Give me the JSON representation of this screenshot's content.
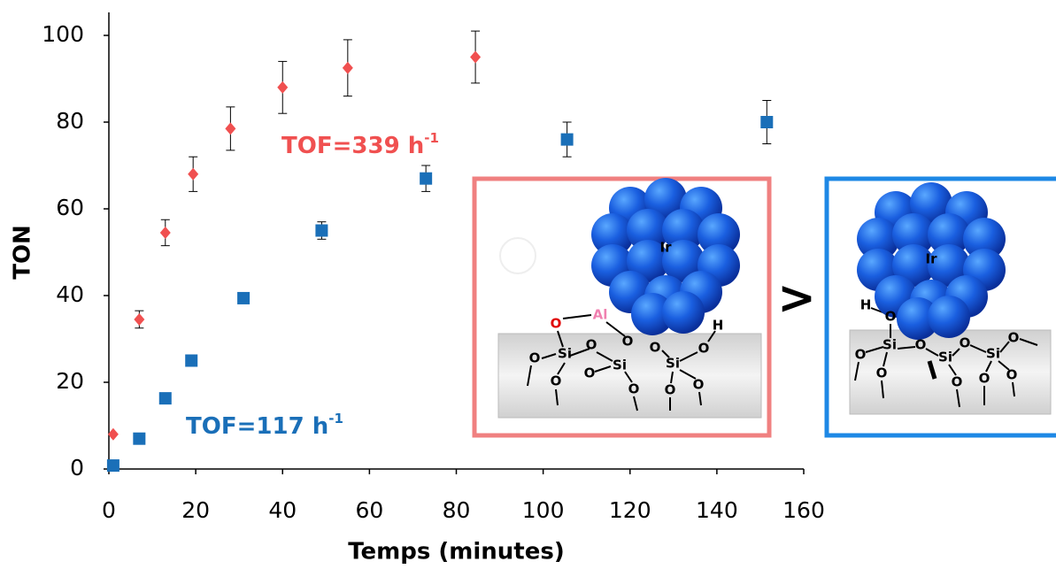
{
  "chart_data": {
    "type": "scatter",
    "xlabel": "Temps (minutes)",
    "ylabel": "TON",
    "xlim": [
      0,
      160
    ],
    "xticks": [
      0,
      20,
      40,
      60,
      80,
      100,
      120,
      140,
      160
    ],
    "ylim": [
      0,
      100
    ],
    "yticks": [
      0,
      20,
      40,
      60,
      80,
      100
    ],
    "grid": false,
    "series": [
      {
        "color": "#f05050",
        "marker": "diamond",
        "x": [
          1,
          7,
          13,
          19.4,
          28,
          40,
          55,
          84.4
        ],
        "values": [
          8,
          34.5,
          54.5,
          68,
          78.5,
          88,
          92.5,
          95
        ],
        "errors": [
          null,
          2,
          3,
          4,
          5,
          6,
          6.5,
          6
        ]
      },
      {
        "color": "#1a6fb8",
        "marker": "square",
        "x": [
          1,
          7,
          13,
          19,
          31,
          49,
          73,
          105.5,
          151.5
        ],
        "values": [
          0.8,
          7,
          16.3,
          25,
          39.4,
          55,
          67,
          76,
          80
        ],
        "errors": [
          null,
          null,
          null,
          null,
          null,
          2,
          3,
          4,
          5
        ]
      }
    ],
    "annotations": [
      {
        "text": "TOF=339 h",
        "sup": "-1",
        "color": "#f05050"
      },
      {
        "text": "TOF=117 h",
        "sup": "-1",
        "color": "#1a6fb8"
      }
    ]
  },
  "diagrams": [
    {
      "labels": [
        "Ir",
        "O",
        "Al",
        "O",
        "O",
        "O",
        "H",
        "O",
        "Si",
        "Si",
        "Si",
        "O",
        "O",
        "O",
        "O",
        "O",
        "O"
      ]
    },
    {
      "separator": ">"
    },
    {
      "labels": [
        "Ir",
        "H",
        "O",
        "O",
        "Si",
        "O",
        "O",
        "O",
        "Si",
        "Si",
        "O",
        "O",
        "O",
        "O"
      ]
    }
  ]
}
